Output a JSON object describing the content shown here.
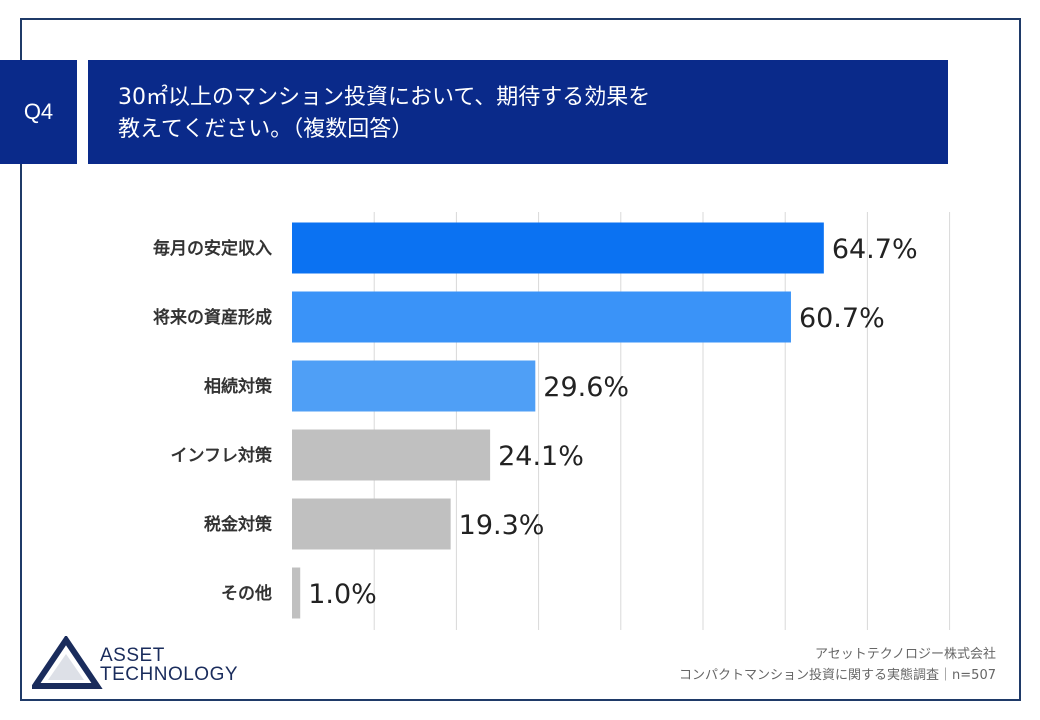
{
  "header": {
    "badge": "Q4",
    "title_line1": "30㎡以上のマンション投資において、期待する効果を",
    "title_line2": "教えてください。（複数回答）"
  },
  "chart_data": {
    "type": "bar",
    "orientation": "horizontal",
    "categories": [
      "毎月の安定収入",
      "将来の資産形成",
      "相続対策",
      "インフレ対策",
      "税金対策",
      "その他"
    ],
    "values": [
      64.7,
      60.7,
      29.6,
      24.1,
      19.3,
      1.0
    ],
    "value_labels": [
      "64.7%",
      "60.7%",
      "29.6%",
      "24.1%",
      "19.3%",
      "1.0%"
    ],
    "xlim": [
      0,
      100
    ],
    "grid": true,
    "colors": [
      "#0b72f2",
      "#3a93f8",
      "#4f9ff6",
      "#c0c0c0",
      "#c0c0c0",
      "#c0c0c0"
    ]
  },
  "logo": {
    "line1": "ASSET",
    "line2": "TECHNOLOGY",
    "color": "#1a2c5c"
  },
  "source": {
    "line1": "アセットテクノロジー株式会社",
    "line2": "コンパクトマンション投資に関する実態調査｜n=507"
  }
}
